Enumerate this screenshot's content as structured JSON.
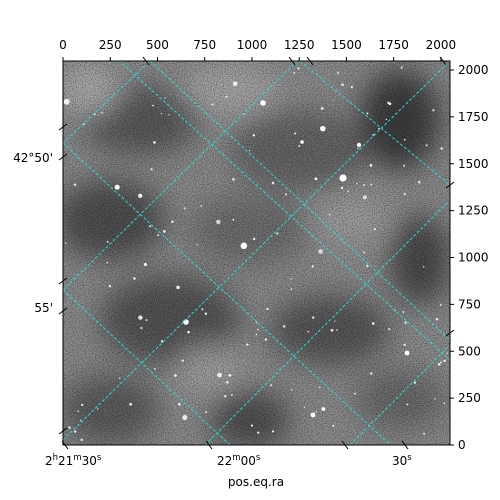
{
  "chart_data": {
    "type": "image",
    "title": "",
    "xlabel": "pos.eq.ra",
    "ylabel": "",
    "pixel_axes": {
      "x": {
        "range": [
          0,
          2048
        ],
        "ticks": [
          0,
          250,
          500,
          750,
          1000,
          1250,
          1500,
          1750,
          2000
        ],
        "label_side": "top"
      },
      "y": {
        "range": [
          0,
          2048
        ],
        "ticks": [
          0,
          250,
          500,
          750,
          1000,
          1250,
          1500,
          1750,
          2000
        ],
        "label_side": "right"
      }
    },
    "world_axes": {
      "ra_ticks": [
        {
          "h": "2",
          "m": "21",
          "s": "30",
          "label": "2h21m30s"
        },
        {
          "m": "22",
          "s": "00",
          "label": "22m00s"
        },
        {
          "s": "30",
          "label": "30s"
        }
      ],
      "dec_ticks": [
        {
          "label": "42°50'"
        },
        {
          "label": "55'"
        }
      ]
    },
    "grid": true,
    "grid_color": "#2ed8d8",
    "colormap": "gray"
  }
}
